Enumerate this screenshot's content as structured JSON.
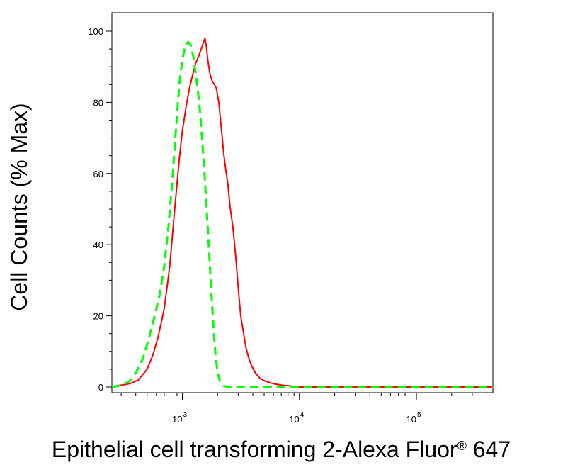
{
  "chart_data": {
    "type": "line",
    "xlabel": "Epithelial cell transforming 2-Alexa Fluor® 647",
    "ylabel": "Cell Counts (% Max)",
    "x_scale": "log",
    "xlim": [
      250,
      450000
    ],
    "ylim": [
      0,
      105
    ],
    "grid": false,
    "y_ticks": [
      0,
      20,
      40,
      60,
      80,
      100
    ],
    "y_tick_labels": [
      "0",
      "20",
      "40",
      "60",
      "80",
      "100"
    ],
    "x_ticks": [
      1000,
      10000,
      100000
    ],
    "x_tick_labels": [
      {
        "base": "10",
        "exp": "3"
      },
      {
        "base": "10",
        "exp": "4"
      },
      {
        "base": "10",
        "exp": "5"
      }
    ],
    "series": [
      {
        "color": "#ff0000",
        "dash": "solid",
        "x": [
          250,
          300,
          360,
          420,
          500,
          560,
          620,
          700,
          780,
          860,
          940,
          1000,
          1080,
          1150,
          1230,
          1300,
          1380,
          1450,
          1520,
          1560,
          1600,
          1650,
          1720,
          1800,
          1880,
          1950,
          2050,
          2150,
          2250,
          2350,
          2450,
          2550,
          2700,
          2850,
          3000,
          3150,
          3300,
          3500,
          3700,
          3900,
          4200,
          4600,
          5000,
          5600,
          6300,
          7200,
          8300,
          9500,
          10000,
          20000,
          50000,
          100000,
          200000,
          450000
        ],
        "y": [
          0,
          0.5,
          1,
          2,
          5,
          9,
          14,
          22,
          34,
          50,
          64,
          72,
          79,
          84,
          88,
          91,
          93,
          95,
          97,
          98,
          96,
          92,
          88,
          86,
          85,
          84,
          80,
          73,
          66,
          61,
          57,
          51,
          45,
          37,
          28,
          20,
          16,
          11,
          8,
          6,
          4,
          2.5,
          1.8,
          1.2,
          0.8,
          0.5,
          0.3,
          0.1,
          0,
          0,
          0,
          0,
          0,
          0
        ]
      },
      {
        "color": "#00ff00",
        "dash": "dashed",
        "x": [
          250,
          300,
          350,
          400,
          460,
          520,
          580,
          640,
          700,
          760,
          820,
          880,
          940,
          1000,
          1060,
          1120,
          1180,
          1240,
          1300,
          1360,
          1420,
          1480,
          1540,
          1600,
          1660,
          1720,
          1780,
          1850,
          1920,
          2000,
          2100,
          2250,
          2500,
          3000,
          5000,
          10000,
          50000,
          450000
        ],
        "y": [
          0,
          0.5,
          1.5,
          4,
          8,
          14,
          20,
          26,
          34,
          45,
          58,
          72,
          85,
          92,
          96,
          97,
          96,
          93,
          88,
          83,
          77,
          69,
          61,
          52,
          43,
          34,
          25,
          16,
          9,
          4,
          1.5,
          0.3,
          0,
          0,
          0,
          0,
          0,
          0
        ]
      }
    ]
  }
}
